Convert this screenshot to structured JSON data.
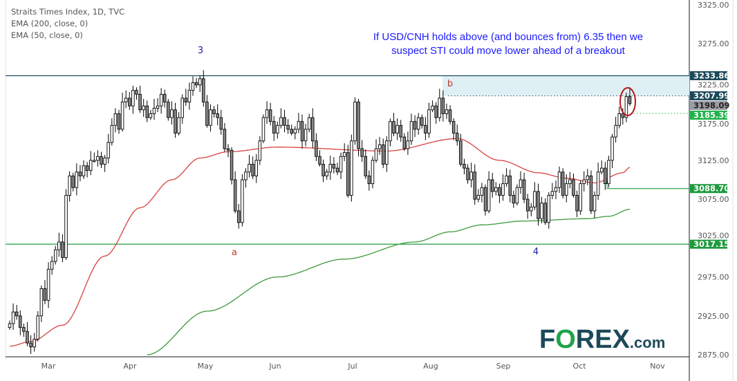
{
  "legend": {
    "title": "Straits Times Index, 1D, TVC",
    "ema200": "EMA (200, close, 0)",
    "ema50": "EMA (50, close, 0)"
  },
  "annotation": {
    "line1": "If USD/CNH holds above (and bounces from) 6.35 then we",
    "line2": "suspect STI could move lower ahead of a breakout",
    "color": "#1a1aff"
  },
  "wave_labels": {
    "w3": "3",
    "wa": "a",
    "wb": "b",
    "w4": "4"
  },
  "logo": {
    "text": "FOREX.com",
    "color": "#1d4a5a",
    "accent": "#1fa34a"
  },
  "chart_data": {
    "type": "candlestick",
    "title": "Straits Times Index, 1D, TVC",
    "ylim": [
      2875,
      3325
    ],
    "y_ticks": [
      "3325.00",
      "3275.00",
      "3225.00",
      "3175.00",
      "3125.00",
      "3075.00",
      "3025.00",
      "2975.00",
      "2925.00",
      "2875.00"
    ],
    "x_ticks": [
      "Mar",
      "Apr",
      "May",
      "Jun",
      "Jul",
      "Aug",
      "Sep",
      "Oct",
      "Nov"
    ],
    "closes": [
      2915,
      2930,
      2925,
      2910,
      2905,
      2890,
      2885,
      2895,
      2925,
      2960,
      2945,
      2985,
      2995,
      3010,
      3020,
      3000,
      3080,
      3105,
      3090,
      3110,
      3105,
      3118,
      3112,
      3125,
      3125,
      3130,
      3120,
      3128,
      3148,
      3170,
      3185,
      3165,
      3200,
      3205,
      3195,
      3215,
      3210,
      3190,
      3195,
      3180,
      3185,
      3192,
      3195,
      3210,
      3200,
      3180,
      3190,
      3160,
      3180,
      3205,
      3200,
      3215,
      3225,
      3222,
      3230,
      3200,
      3170,
      3190,
      3185,
      3180,
      3165,
      3140,
      3138,
      3100,
      3060,
      3045,
      3100,
      3110,
      3120,
      3105,
      3125,
      3150,
      3180,
      3190,
      3175,
      3160,
      3170,
      3180,
      3170,
      3165,
      3160,
      3165,
      3175,
      3150,
      3165,
      3180,
      3150,
      3130,
      3120,
      3105,
      3110,
      3120,
      3115,
      3110,
      3130,
      3135,
      3080,
      3150,
      3200,
      3140,
      3130,
      3105,
      3095,
      3125,
      3140,
      3145,
      3120,
      3150,
      3175,
      3160,
      3170,
      3155,
      3140,
      3150,
      3175,
      3165,
      3180,
      3170,
      3160,
      3190,
      3195,
      3180,
      3205,
      3185,
      3190,
      3175,
      3160,
      3150,
      3120,
      3115,
      3100,
      3110,
      3075,
      3080,
      3090,
      3060,
      3100,
      3085,
      3090,
      3080,
      3095,
      3105,
      3080,
      3070,
      3090,
      3100,
      3075,
      3060,
      3065,
      3085,
      3050,
      3070,
      3045,
      3080,
      3085,
      3090,
      3110,
      3080,
      3095,
      3100,
      3080,
      3060,
      3095,
      3100,
      3105,
      3060,
      3080,
      3110,
      3115,
      3095,
      3125,
      3155,
      3170,
      3185,
      3180,
      3207,
      3198
    ],
    "ema50": [
      [
        0,
        2886
      ],
      [
        6,
        2892
      ],
      [
        15,
        2913
      ],
      [
        27,
        3002
      ],
      [
        37,
        3064
      ],
      [
        46,
        3100
      ],
      [
        54,
        3128
      ],
      [
        62,
        3136
      ],
      [
        76,
        3142
      ],
      [
        107,
        3137
      ],
      [
        127,
        3153
      ],
      [
        139,
        3125
      ],
      [
        150,
        3109
      ],
      [
        158,
        3102
      ],
      [
        166,
        3096
      ],
      [
        174,
        3109
      ],
      [
        176,
        3116
      ]
    ],
    "ema200": [
      [
        39,
        2875
      ],
      [
        56,
        2931
      ],
      [
        76,
        2975
      ],
      [
        95,
        2998
      ],
      [
        115,
        3020
      ],
      [
        125,
        3033
      ],
      [
        134,
        3042
      ],
      [
        146,
        3047
      ],
      [
        164,
        3050
      ],
      [
        170,
        3053
      ],
      [
        176,
        3062
      ]
    ],
    "levels": [
      {
        "value": "3233.86",
        "color": "#1d4a5a",
        "style": "solid"
      },
      {
        "value": "3207.99",
        "color": "#1d4a5a",
        "style": "dotted"
      },
      {
        "value": "3198.09",
        "color": "#9b9ba3",
        "style": "last"
      },
      {
        "value": "3185.39",
        "color": "#1fb34a",
        "style": "dotted"
      },
      {
        "value": "3088.70",
        "color": "#1f9a3e",
        "style": "solid"
      },
      {
        "value": "3017.15",
        "color": "#1f9a3e",
        "style": "solid"
      }
    ],
    "zone": {
      "from": 3207.99,
      "to": 3233.86,
      "color": "#dff0f5"
    },
    "colors": {
      "bull": "#ffffff",
      "bear": "#8a8a8a",
      "ema50": "#d9403f",
      "ema200": "#3c9a3c"
    }
  }
}
